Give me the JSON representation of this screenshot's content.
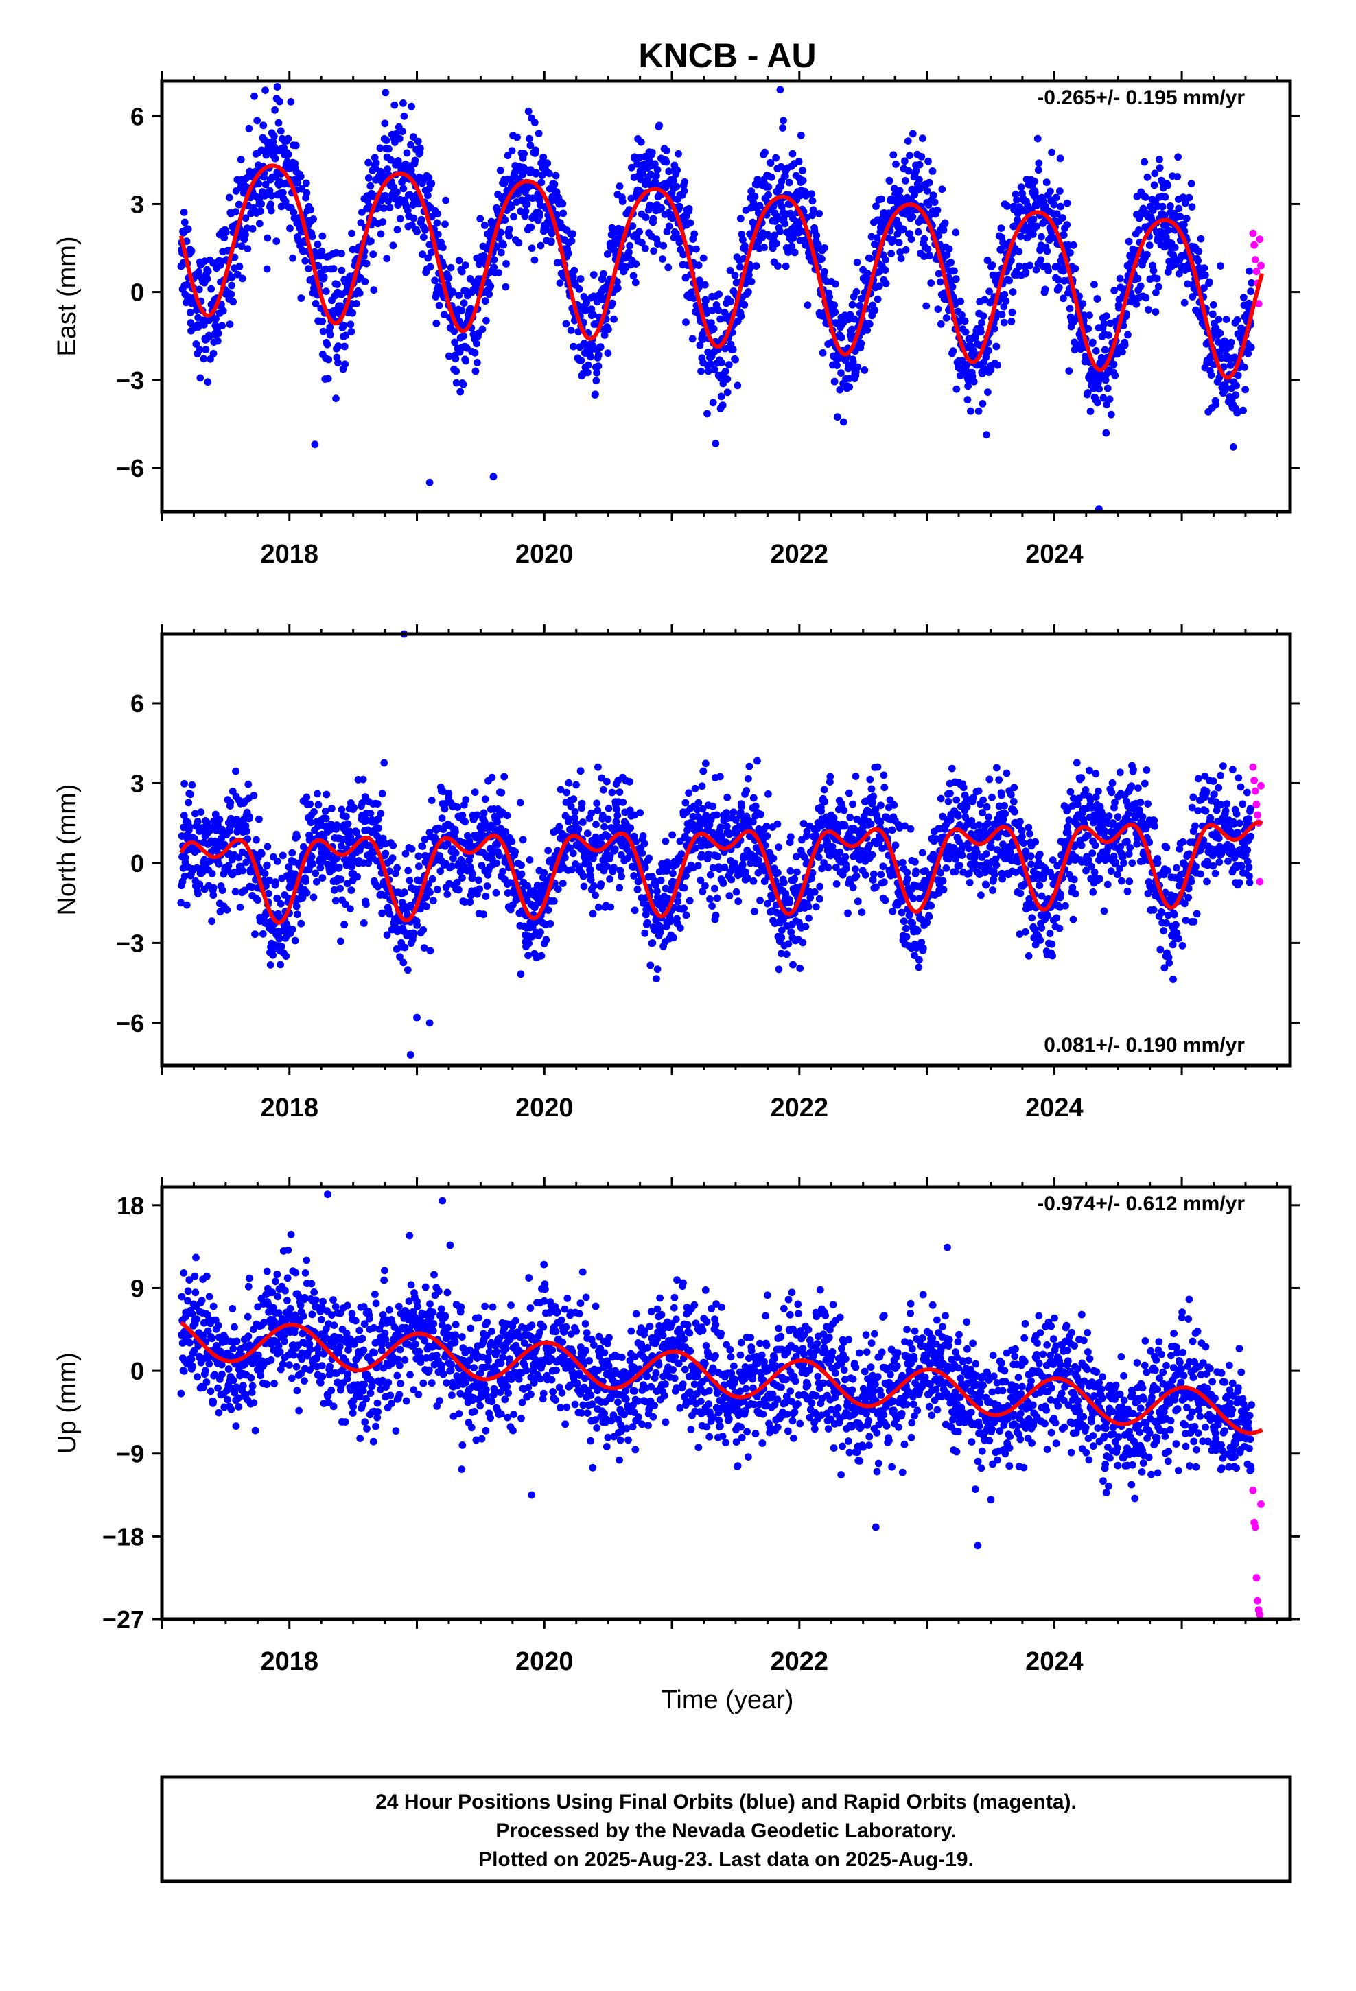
{
  "figure": {
    "title": "KNCB - AU",
    "xlabel": "Time (year)",
    "footer_lines": [
      "24 Hour Positions Using Final Orbits (blue) and Rapid Orbits (magenta).",
      "Processed by the Nevada Geodetic Laboratory.",
      "Plotted on 2025-Aug-23. Last data on 2025-Aug-19."
    ]
  },
  "colors": {
    "final": "#0000ff",
    "rapid": "#ff00ff",
    "model": "#ff0000",
    "frame": "#000000"
  },
  "chart_data": [
    {
      "type": "scatter",
      "panel": "east",
      "ylabel": "East (mm)",
      "rate_text": "-0.265+/- 0.195 mm/yr",
      "rate_position": "top-right",
      "xlim": [
        2017.0,
        2025.85
      ],
      "ylim": [
        -7.5,
        7.2
      ],
      "xticks": [
        2018,
        2020,
        2022,
        2024
      ],
      "xtick_labels": [
        "2018",
        "2020",
        "2022",
        "2024"
      ],
      "yticks": [
        -6,
        -3,
        0,
        3,
        6
      ],
      "ytick_labels": [
        "−6",
        "−3",
        "0",
        "3",
        "6"
      ],
      "data_start": 2017.15,
      "final_end": 2025.55,
      "rapid_end": 2025.63,
      "model": {
        "offset": 1.11,
        "rate": -0.265,
        "annual_cos": 1.7,
        "annual_sin": -2.0,
        "semi_cos": 0.1,
        "semi_sin": 0.35,
        "ref_year": 2021.4
      },
      "scatter_sd": 1.0,
      "series": [
        {
          "name": "Final Orbits (blue)",
          "color": "#0000ff",
          "approx_points": 2900
        },
        {
          "name": "Rapid Orbits (magenta)",
          "color": "#ff00ff",
          "approx_points": 8,
          "values": [
            2.0,
            1.6,
            1.1,
            0.7,
            0.3,
            -0.4,
            1.8,
            0.9
          ]
        }
      ],
      "outliers": [
        [
          2018.2,
          -5.2
        ],
        [
          2019.1,
          -6.5
        ],
        [
          2019.6,
          -6.3
        ],
        [
          2024.35,
          -7.4
        ],
        [
          2021.85,
          6.9
        ],
        [
          2018.9,
          6.0
        ]
      ]
    },
    {
      "type": "scatter",
      "panel": "north",
      "ylabel": "North (mm)",
      "rate_text": "0.081+/- 0.190 mm/yr",
      "rate_position": "bottom-right",
      "xlim": [
        2017.0,
        2025.85
      ],
      "ylim": [
        -7.6,
        8.6
      ],
      "xticks": [
        2018,
        2020,
        2022,
        2024
      ],
      "xtick_labels": [
        "2018",
        "2020",
        "2022",
        "2024"
      ],
      "yticks": [
        -6,
        -3,
        0,
        3,
        6
      ],
      "ytick_labels": [
        "−6",
        "−3",
        "0",
        "3",
        "6"
      ],
      "data_start": 2017.15,
      "final_end": 2025.55,
      "rapid_end": 2025.63,
      "model": {
        "offset": 0.1,
        "rate": 0.081,
        "annual_cos": -1.1,
        "annual_sin": 0.6,
        "semi_cos": -0.4,
        "semi_sin": 0.7,
        "ref_year": 2021.4
      },
      "scatter_sd": 1.05,
      "series": [
        {
          "name": "Final Orbits (blue)",
          "color": "#0000ff",
          "approx_points": 2900
        },
        {
          "name": "Rapid Orbits (magenta)",
          "color": "#ff00ff",
          "approx_points": 8,
          "values": [
            3.6,
            3.1,
            2.7,
            2.2,
            1.8,
            1.5,
            -0.7,
            2.9
          ]
        }
      ],
      "outliers": [
        [
          2018.9,
          8.6
        ],
        [
          2018.95,
          -7.2
        ],
        [
          2019.0,
          -5.8
        ],
        [
          2019.1,
          -6.0
        ]
      ]
    },
    {
      "type": "scatter",
      "panel": "up",
      "ylabel": "Up (mm)",
      "rate_text": "-0.974+/- 0.612 mm/yr",
      "rate_position": "top-right",
      "xlim": [
        2017.0,
        2025.85
      ],
      "ylim": [
        -27.0,
        20.0
      ],
      "xticks": [
        2018,
        2020,
        2022,
        2024
      ],
      "xtick_labels": [
        "2018",
        "2020",
        "2022",
        "2024"
      ],
      "yticks": [
        -27,
        -18,
        -9,
        0,
        9,
        18
      ],
      "ytick_labels": [
        "−27",
        "−18",
        "−9",
        "0",
        "9",
        "18"
      ],
      "data_start": 2017.15,
      "final_end": 2025.55,
      "rapid_end": 2025.63,
      "model": {
        "offset": -0.5,
        "rate": -0.974,
        "annual_cos": 2.2,
        "annual_sin": 0.4,
        "semi_cos": 0.0,
        "semi_sin": 0.0,
        "ref_year": 2021.4
      },
      "scatter_sd": 3.3,
      "series": [
        {
          "name": "Final Orbits (blue)",
          "color": "#0000ff",
          "approx_points": 2900
        },
        {
          "name": "Rapid Orbits (magenta)",
          "color": "#ff00ff",
          "approx_points": 8,
          "values": [
            -13.0,
            -16.5,
            -17.0,
            -22.5,
            -25.0,
            -26.0,
            -26.5,
            -14.5
          ]
        }
      ],
      "outliers": [
        [
          2018.3,
          19.2
        ],
        [
          2019.2,
          18.5
        ],
        [
          2023.4,
          -19.0
        ],
        [
          2022.6,
          -17.0
        ],
        [
          2019.9,
          -13.5
        ]
      ]
    }
  ]
}
